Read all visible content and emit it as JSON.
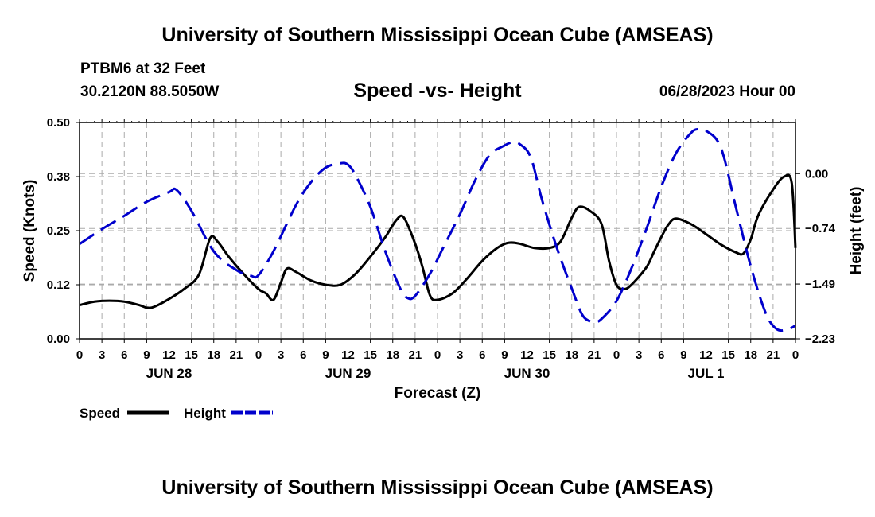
{
  "header": {
    "title": "University of Southern Mississippi Ocean Cube (AMSEAS)",
    "station": "PTBM6 at 32 Feet",
    "coords": "30.2120N  88.5050W",
    "subtitle": "Speed -vs- Height",
    "issued": "06/28/2023 Hour 00"
  },
  "footer": {
    "title": "University of Southern Mississippi Ocean Cube (AMSEAS)"
  },
  "chart_data": {
    "type": "line",
    "title": "Speed -vs- Height",
    "xlabel": "Forecast (Z)",
    "ylabel": "Speed (Knots)",
    "y2label": "Height (feet)",
    "x_unit": "hours from 06/28/2023 00Z",
    "xlim": [
      0,
      96
    ],
    "ylim": [
      0,
      0.5
    ],
    "y2lim": [
      -2.23,
      0.69
    ],
    "x_tick_step": 3,
    "x_tick_labels": [
      "0",
      "3",
      "6",
      "9",
      "12",
      "15",
      "18",
      "21",
      "0",
      "3",
      "6",
      "9",
      "12",
      "15",
      "18",
      "21",
      "0",
      "3",
      "6",
      "9",
      "12",
      "15",
      "18",
      "21",
      "0",
      "3",
      "6",
      "9",
      "12",
      "15",
      "18",
      "21",
      "0"
    ],
    "date_labels": [
      {
        "hour": 12,
        "label": "JUN 28"
      },
      {
        "hour": 36,
        "label": "JUN 29"
      },
      {
        "hour": 60,
        "label": "JUN 30"
      },
      {
        "hour": 84,
        "label": "JUL 1"
      }
    ],
    "y_ticks": [
      {
        "value": 0.0,
        "label": "0.00"
      },
      {
        "value": 0.125,
        "label": "0.12"
      },
      {
        "value": 0.25,
        "label": "0.25"
      },
      {
        "value": 0.375,
        "label": "0.38"
      },
      {
        "value": 0.5,
        "label": "0.50"
      }
    ],
    "y2_ticks": [
      {
        "value": 0.0,
        "label": "0.00"
      },
      {
        "value": -0.74,
        "label": "-0.74"
      },
      {
        "value": -1.49,
        "label": "-1.49"
      },
      {
        "value": -2.23,
        "label": "-2.23"
      }
    ],
    "grid": true,
    "series": [
      {
        "name": "Speed",
        "axis": "left",
        "color": "#000000",
        "dash": "solid",
        "points": [
          [
            0,
            0.078
          ],
          [
            2,
            0.086
          ],
          [
            4,
            0.088
          ],
          [
            6,
            0.086
          ],
          [
            8,
            0.078
          ],
          [
            9,
            0.072
          ],
          [
            10,
            0.074
          ],
          [
            12,
            0.092
          ],
          [
            14,
            0.115
          ],
          [
            16,
            0.148
          ],
          [
            17.5,
            0.232
          ],
          [
            18.5,
            0.225
          ],
          [
            20,
            0.19
          ],
          [
            22,
            0.15
          ],
          [
            24,
            0.115
          ],
          [
            25,
            0.105
          ],
          [
            26,
            0.09
          ],
          [
            27,
            0.13
          ],
          [
            27.8,
            0.162
          ],
          [
            29,
            0.155
          ],
          [
            31,
            0.135
          ],
          [
            33,
            0.125
          ],
          [
            35,
            0.125
          ],
          [
            37,
            0.15
          ],
          [
            39,
            0.19
          ],
          [
            41,
            0.235
          ],
          [
            42.5,
            0.275
          ],
          [
            43.5,
            0.28
          ],
          [
            45,
            0.22
          ],
          [
            46,
            0.165
          ],
          [
            47,
            0.1
          ],
          [
            48,
            0.09
          ],
          [
            50,
            0.105
          ],
          [
            52,
            0.14
          ],
          [
            54,
            0.18
          ],
          [
            56,
            0.21
          ],
          [
            57.5,
            0.222
          ],
          [
            59,
            0.22
          ],
          [
            61,
            0.21
          ],
          [
            63,
            0.21
          ],
          [
            64.5,
            0.225
          ],
          [
            66,
            0.28
          ],
          [
            67,
            0.305
          ],
          [
            68.5,
            0.295
          ],
          [
            70,
            0.265
          ],
          [
            71,
            0.18
          ],
          [
            72,
            0.125
          ],
          [
            73,
            0.115
          ],
          [
            74,
            0.125
          ],
          [
            76,
            0.165
          ],
          [
            77,
            0.2
          ],
          [
            78,
            0.235
          ],
          [
            79,
            0.265
          ],
          [
            80,
            0.278
          ],
          [
            82,
            0.265
          ],
          [
            84,
            0.242
          ],
          [
            86,
            0.218
          ],
          [
            88,
            0.2
          ],
          [
            89,
            0.197
          ],
          [
            90,
            0.23
          ],
          [
            91,
            0.285
          ],
          [
            93,
            0.345
          ],
          [
            94.5,
            0.375
          ],
          [
            95.5,
            0.36
          ],
          [
            96,
            0.21
          ]
        ]
      },
      {
        "name": "Height",
        "axis": "right",
        "color": "#0000cc",
        "dash": "dashed",
        "points": [
          [
            0,
            -0.95
          ],
          [
            3,
            -0.75
          ],
          [
            6,
            -0.57
          ],
          [
            9,
            -0.38
          ],
          [
            12,
            -0.25
          ],
          [
            13,
            -0.22
          ],
          [
            15,
            -0.5
          ],
          [
            18,
            -1.05
          ],
          [
            21,
            -1.3
          ],
          [
            23,
            -1.38
          ],
          [
            24,
            -1.37
          ],
          [
            26,
            -1.05
          ],
          [
            29,
            -0.43
          ],
          [
            31,
            -0.12
          ],
          [
            33,
            0.08
          ],
          [
            35,
            0.14
          ],
          [
            36,
            0.12
          ],
          [
            37,
            -0.02
          ],
          [
            39,
            -0.45
          ],
          [
            41,
            -1.05
          ],
          [
            43,
            -1.55
          ],
          [
            44,
            -1.68
          ],
          [
            45,
            -1.65
          ],
          [
            47,
            -1.35
          ],
          [
            49,
            -0.95
          ],
          [
            51,
            -0.55
          ],
          [
            53,
            -0.1
          ],
          [
            55,
            0.25
          ],
          [
            57,
            0.38
          ],
          [
            58,
            0.42
          ],
          [
            59,
            0.4
          ],
          [
            60.5,
            0.22
          ],
          [
            62,
            -0.35
          ],
          [
            64,
            -1.0
          ],
          [
            66,
            -1.55
          ],
          [
            67.5,
            -1.92
          ],
          [
            69,
            -2.0
          ],
          [
            70,
            -1.96
          ],
          [
            72,
            -1.72
          ],
          [
            74,
            -1.28
          ],
          [
            76,
            -0.75
          ],
          [
            78,
            -0.18
          ],
          [
            80,
            0.28
          ],
          [
            82,
            0.55
          ],
          [
            83,
            0.6
          ],
          [
            84,
            0.58
          ],
          [
            86,
            0.35
          ],
          [
            88,
            -0.45
          ],
          [
            90,
            -1.25
          ],
          [
            92,
            -1.88
          ],
          [
            93.5,
            -2.1
          ],
          [
            95,
            -2.1
          ],
          [
            96,
            -2.05
          ]
        ]
      }
    ]
  }
}
